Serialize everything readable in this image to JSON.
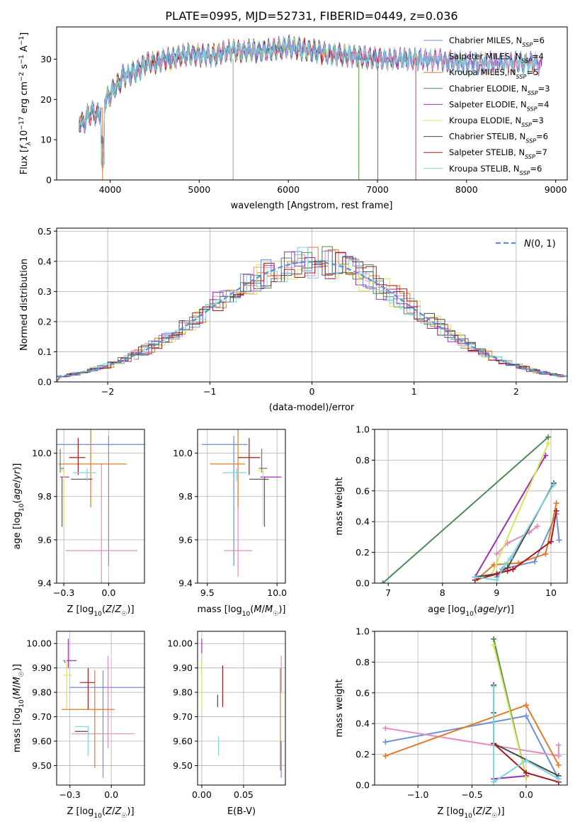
{
  "title": "PLATE=0995, MJD=52731, FIBERID=0449, z=0.036",
  "series_names": [
    "Chabrier MILES, N_SSP=6",
    "Salpeter MILES, N_SSP=4",
    "Kroupa MILES, N_SSP=5",
    "Chabrier ELODIE, N_SSP=3",
    "Salpeter ELODIE, N_SSP=4",
    "Kroupa ELODIE, N_SSP=3",
    "Chabrier STELIB, N_SSP=6",
    "Salpeter STELIB, N_SSP=7",
    "Kroupa STELIB, N_SSP=6"
  ],
  "series_colors": [
    "#6b8fdc",
    "#e58ac0",
    "#e07b29",
    "#4e8a55",
    "#9b2fb8",
    "#d9e35b",
    "#4a4a4a",
    "#a8191d",
    "#7fd3de"
  ],
  "chart_data": [
    {
      "id": "spectrum",
      "type": "line",
      "xlabel": "wavelength [Angstrom, rest frame]",
      "ylabel": "Flux [f_λ 10^-17 erg cm^-2 s^-1 A^-1]",
      "xlim": [
        3400,
        9130
      ],
      "ylim": [
        0,
        38
      ],
      "xticks": [
        4000,
        5000,
        6000,
        7000,
        8000,
        9000
      ],
      "yticks": [
        0,
        10,
        20,
        30
      ],
      "legend": "top-right",
      "spectrum_anchors": [
        [
          3650,
          15
        ],
        [
          3700,
          14
        ],
        [
          3750,
          16
        ],
        [
          3800,
          17
        ],
        [
          3850,
          16
        ],
        [
          3900,
          17
        ],
        [
          3950,
          20
        ],
        [
          4000,
          21
        ],
        [
          4050,
          23
        ],
        [
          4100,
          24
        ],
        [
          4150,
          26
        ],
        [
          4200,
          26
        ],
        [
          4300,
          27
        ],
        [
          4400,
          29
        ],
        [
          4500,
          29
        ],
        [
          4600,
          30
        ],
        [
          4700,
          30
        ],
        [
          4800,
          31
        ],
        [
          4900,
          31
        ],
        [
          5000,
          31
        ],
        [
          5100,
          31
        ],
        [
          5200,
          31
        ],
        [
          5300,
          32
        ],
        [
          5500,
          32
        ],
        [
          5700,
          32
        ],
        [
          6000,
          33
        ],
        [
          6300,
          32
        ],
        [
          6500,
          31
        ],
        [
          6700,
          31
        ],
        [
          7000,
          30
        ],
        [
          7300,
          30
        ],
        [
          7600,
          30
        ],
        [
          8000,
          29
        ],
        [
          8400,
          29
        ],
        [
          8800,
          29
        ]
      ]
    },
    {
      "id": "residuals",
      "type": "histogram",
      "xlabel": "(data-model)/error",
      "ylabel": "Normed distribution",
      "xlim": [
        -2.5,
        2.5
      ],
      "ylim": [
        0,
        0.51
      ],
      "xticks": [
        -2,
        -1,
        0,
        1,
        2
      ],
      "yticks": [
        0.0,
        0.1,
        0.2,
        0.3,
        0.4,
        0.5
      ],
      "legend_label": "N(0,1)",
      "legend_color": "#5b8ddb",
      "bin_width": 0.1
    },
    {
      "id": "age-vs-Z",
      "type": "errorbar",
      "xlabel": "Z [log10(Z/Z☉)]",
      "ylabel": "age [log10(age/yr)]",
      "xlim": [
        -0.29,
        0.2
      ],
      "ylim": [
        9.4,
        10.11
      ],
      "xticks": [
        -0.25,
        0.0
      ],
      "yticks": [
        9.4,
        9.6,
        9.8,
        10.0
      ],
      "points": [
        {
          "s": 0,
          "x": 0.0,
          "xerr": [
            0.3,
            0.3
          ],
          "y": 10.04,
          "yerr": [
            0.56,
            0.04
          ]
        },
        {
          "s": 1,
          "x": -0.04,
          "xerr": [
            0.2,
            0.2
          ],
          "y": 9.55,
          "yerr": [
            0.15,
            0.4
          ]
        },
        {
          "s": 2,
          "x": -0.1,
          "xerr": [
            0.18,
            0.2
          ],
          "y": 9.95,
          "yerr": [
            0.2,
            0.16
          ]
        },
        {
          "s": 3,
          "x": -0.27,
          "xerr": [
            0.0,
            0.02
          ],
          "y": 9.93,
          "yerr": [
            0.02,
            0.09
          ]
        },
        {
          "s": 4,
          "x": -0.26,
          "xerr": [
            0.01,
            0.04
          ],
          "y": 9.89,
          "yerr": [
            0.23,
            0.0
          ]
        },
        {
          "s": 5,
          "x": -0.25,
          "xerr": [
            0.02,
            0.0
          ],
          "y": 9.92,
          "yerr": [
            0.25,
            0.0
          ]
        },
        {
          "s": 6,
          "x": -0.15,
          "xerr": [
            0.06,
            0.06
          ],
          "y": 9.88,
          "yerr": [
            0.0,
            0.0
          ]
        },
        {
          "s": 7,
          "x": -0.17,
          "xerr": [
            0.05,
            0.04
          ],
          "y": 9.98,
          "yerr": [
            0.08,
            0.09
          ]
        },
        {
          "s": 8,
          "x": -0.12,
          "xerr": [
            0.08,
            0.05
          ],
          "y": 9.91,
          "yerr": [
            0.04,
            0.02
          ]
        }
      ]
    },
    {
      "id": "age-vs-mass",
      "type": "errorbar",
      "xlabel": "mass [log10(M/M☉)]",
      "ylabel": "",
      "xlim": [
        9.43,
        10.06
      ],
      "ylim": [
        9.4,
        10.11
      ],
      "xticks": [
        9.5,
        10.0
      ],
      "yticks": [
        9.4,
        9.6,
        9.8,
        10.0
      ],
      "points": [
        {
          "s": 0,
          "x": 9.69,
          "xerr": [
            0.23,
            0.1
          ],
          "y": 10.04,
          "yerr": [
            0.56,
            0.04
          ]
        },
        {
          "s": 1,
          "x": 9.72,
          "xerr": [
            0.1,
            0.1
          ],
          "y": 9.55,
          "yerr": [
            0.12,
            0.38
          ]
        },
        {
          "s": 2,
          "x": 9.72,
          "xerr": [
            0.2,
            0.05
          ],
          "y": 9.95,
          "yerr": [
            0.2,
            0.16
          ]
        },
        {
          "s": 3,
          "x": 9.89,
          "xerr": [
            0.02,
            0.04
          ],
          "y": 9.93,
          "yerr": [
            0.02,
            0.09
          ]
        },
        {
          "s": 4,
          "x": 9.91,
          "xerr": [
            0.03,
            0.12
          ],
          "y": 9.89,
          "yerr": [
            0.23,
            0.0
          ]
        },
        {
          "s": 5,
          "x": 9.9,
          "xerr": [
            0.04,
            0.0
          ],
          "y": 9.92,
          "yerr": [
            0.25,
            0.0
          ]
        },
        {
          "s": 6,
          "x": 9.86,
          "xerr": [
            0.06,
            0.08
          ],
          "y": 9.88,
          "yerr": [
            0.0,
            0.0
          ]
        },
        {
          "s": 7,
          "x": 9.8,
          "xerr": [
            0.08,
            0.08
          ],
          "y": 9.98,
          "yerr": [
            0.08,
            0.09
          ]
        },
        {
          "s": 8,
          "x": 9.71,
          "xerr": [
            0.1,
            0.07
          ],
          "y": 9.91,
          "yerr": [
            0.04,
            0.02
          ]
        }
      ]
    },
    {
      "id": "weight-vs-age",
      "type": "line",
      "xlabel": "age [log10(age/yr)]",
      "ylabel": "mass weight",
      "xlim": [
        6.75,
        10.3
      ],
      "ylim": [
        0,
        1.0
      ],
      "xticks": [
        7,
        8,
        9,
        10
      ],
      "yticks": [
        0.0,
        0.2,
        0.4,
        0.6,
        0.8,
        1.0
      ],
      "series": [
        {
          "s": 0,
          "x": [
            9.0,
            9.1,
            9.2,
            9.7,
            10.1,
            10.15
          ],
          "y": [
            0.04,
            0.09,
            0.1,
            0.14,
            0.45,
            0.28
          ]
        },
        {
          "s": 1,
          "x": [
            9.0,
            9.2,
            9.6,
            9.75
          ],
          "y": [
            0.19,
            0.26,
            0.33,
            0.37
          ]
        },
        {
          "s": 2,
          "x": [
            8.65,
            8.95,
            9.4,
            9.9,
            10.1
          ],
          "y": [
            0.03,
            0.12,
            0.13,
            0.19,
            0.52
          ]
        },
        {
          "s": 3,
          "x": [
            6.9,
            9.95
          ],
          "y": [
            0.0,
            0.95
          ]
        },
        {
          "s": 4,
          "x": [
            8.6,
            9.9
          ],
          "y": [
            0.04,
            0.83
          ]
        },
        {
          "s": 5,
          "x": [
            8.9,
            9.95
          ],
          "y": [
            0.05,
            0.91
          ]
        },
        {
          "s": 6,
          "x": [
            8.6,
            9.0,
            9.2,
            10.05
          ],
          "y": [
            0.04,
            0.06,
            0.1,
            0.65
          ]
        },
        {
          "s": 7,
          "x": [
            8.6,
            9.0,
            9.2,
            9.3,
            10.0,
            10.1
          ],
          "y": [
            0.02,
            0.06,
            0.08,
            0.09,
            0.27,
            0.47
          ]
        },
        {
          "s": 8,
          "x": [
            8.6,
            9.0,
            9.15,
            9.25,
            10.05
          ],
          "y": [
            0.04,
            0.02,
            0.12,
            0.16,
            0.64
          ]
        }
      ]
    },
    {
      "id": "mass-vs-Z",
      "type": "errorbar",
      "xlabel": "Z [log10(Z/Z☉)]",
      "ylabel": "mass [log10(M/M☉)]",
      "xlim": [
        -0.33,
        0.2
      ],
      "ylim": [
        9.42,
        10.05
      ],
      "xticks": [
        -0.25,
        0.0
      ],
      "yticks": [
        9.5,
        9.6,
        9.7,
        9.8,
        9.9,
        10.0
      ],
      "points": [
        {
          "s": 0,
          "x": -0.05,
          "xerr": [
            0.2,
            0.25
          ],
          "y": 9.82,
          "yerr": [
            0.37,
            0.07
          ]
        },
        {
          "s": 1,
          "x": -0.02,
          "xerr": [
            0.22,
            0.16
          ],
          "y": 9.63,
          "yerr": [
            0.06,
            0.32
          ]
        },
        {
          "s": 2,
          "x": -0.1,
          "xerr": [
            0.2,
            0.12
          ],
          "y": 9.73,
          "yerr": [
            0.24,
            0.16
          ]
        },
        {
          "s": 3,
          "x": -0.28,
          "xerr": [
            0.01,
            0.0
          ],
          "y": 9.93,
          "yerr": [
            0.01,
            0.0
          ]
        },
        {
          "s": 4,
          "x": -0.26,
          "xerr": [
            0.01,
            0.05
          ],
          "y": 9.93,
          "yerr": [
            0.03,
            0.09
          ]
        },
        {
          "s": 5,
          "x": -0.27,
          "xerr": [
            0.02,
            0.03
          ],
          "y": 9.87,
          "yerr": [
            0.14,
            0.06
          ]
        },
        {
          "s": 6,
          "x": -0.14,
          "xerr": [
            0.08,
            0.0
          ],
          "y": 9.64,
          "yerr": [
            0.0,
            0.0
          ]
        },
        {
          "s": 7,
          "x": -0.14,
          "xerr": [
            0.05,
            0.04
          ],
          "y": 9.84,
          "yerr": [
            0.11,
            0.06
          ]
        },
        {
          "s": 8,
          "x": -0.14,
          "xerr": [
            0.08,
            0.0
          ],
          "y": 9.66,
          "yerr": [
            0.12,
            0.0
          ]
        }
      ]
    },
    {
      "id": "mass-vs-EBV",
      "type": "errorbar",
      "xlabel": "E(B-V)",
      "ylabel": "",
      "xlim": [
        -0.005,
        0.1
      ],
      "ylim": [
        9.42,
        10.05
      ],
      "xticks": [
        0.0,
        0.05
      ],
      "yticks": [
        9.5,
        9.6,
        9.7,
        9.8,
        9.9,
        10.0
      ],
      "points": [
        {
          "s": 0,
          "x": 0.095,
          "xerr": [
            0,
            0
          ],
          "y": 9.6,
          "yerr": [
            0.15,
            0.0
          ]
        },
        {
          "s": 1,
          "x": 0.095,
          "xerr": [
            0,
            0
          ],
          "y": 9.8,
          "yerr": [
            0.0,
            0.15
          ]
        },
        {
          "s": 2,
          "x": 0.094,
          "xerr": [
            0,
            0
          ],
          "y": 9.7,
          "yerr": [
            0.22,
            0.2
          ]
        },
        {
          "s": 3,
          "x": 0.0,
          "xerr": [
            0,
            0
          ],
          "y": 9.93,
          "yerr": [
            0.05,
            0.0
          ]
        },
        {
          "s": 4,
          "x": 0.0,
          "xerr": [
            0,
            0
          ],
          "y": 9.96,
          "yerr": [
            0.0,
            0.06
          ]
        },
        {
          "s": 5,
          "x": 0.0,
          "xerr": [
            0,
            0
          ],
          "y": 9.88,
          "yerr": [
            0.15,
            0.05
          ]
        },
        {
          "s": 6,
          "x": 0.019,
          "xerr": [
            0,
            0
          ],
          "y": 9.74,
          "yerr": [
            0.0,
            0.05
          ]
        },
        {
          "s": 7,
          "x": 0.025,
          "xerr": [
            0,
            0
          ],
          "y": 9.82,
          "yerr": [
            0.08,
            0.09
          ]
        },
        {
          "s": 8,
          "x": 0.02,
          "xerr": [
            0,
            0
          ],
          "y": 9.62,
          "yerr": [
            0.08,
            0.0
          ]
        }
      ]
    },
    {
      "id": "weight-vs-Z",
      "type": "line",
      "xlabel": "Z [log10(Z/Z☉)]",
      "ylabel": "mass weight",
      "xlim": [
        -1.4,
        0.38
      ],
      "ylim": [
        0,
        1.0
      ],
      "xticks": [
        -1.0,
        -0.5,
        0.0
      ],
      "yticks": [
        0.0,
        0.2,
        0.4,
        0.6,
        0.8,
        1.0
      ],
      "series": [
        {
          "s": 0,
          "x": [
            -1.3,
            0.0,
            0.3
          ],
          "y": [
            0.28,
            0.45,
            0.04
          ]
        },
        {
          "s": 1,
          "x": [
            -1.3,
            0.3,
            0.3
          ],
          "y": [
            0.37,
            0.19,
            0.26
          ]
        },
        {
          "s": 2,
          "x": [
            -1.3,
            0.0,
            0.3
          ],
          "y": [
            0.19,
            0.52,
            0.13
          ]
        },
        {
          "s": 3,
          "x": [
            -0.3,
            0.0
          ],
          "y": [
            0.95,
            0.05
          ]
        },
        {
          "s": 4,
          "x": [
            -0.3,
            0.0
          ],
          "y": [
            0.04,
            0.06
          ]
        },
        {
          "s": 5,
          "x": [
            -0.3,
            0.0
          ],
          "y": [
            0.91,
            0.05
          ]
        },
        {
          "s": 6,
          "x": [
            -0.3,
            -0.3,
            -0.3,
            0.3
          ],
          "y": [
            0.65,
            0.47,
            0.27,
            0.06
          ]
        },
        {
          "s": 7,
          "x": [
            -0.3,
            0.0,
            0.3
          ],
          "y": [
            0.27,
            0.08,
            0.02
          ]
        },
        {
          "s": 8,
          "x": [
            -0.3,
            -0.3,
            0.0,
            0.3
          ],
          "y": [
            0.64,
            0.02,
            0.16,
            0.04
          ]
        }
      ]
    }
  ]
}
